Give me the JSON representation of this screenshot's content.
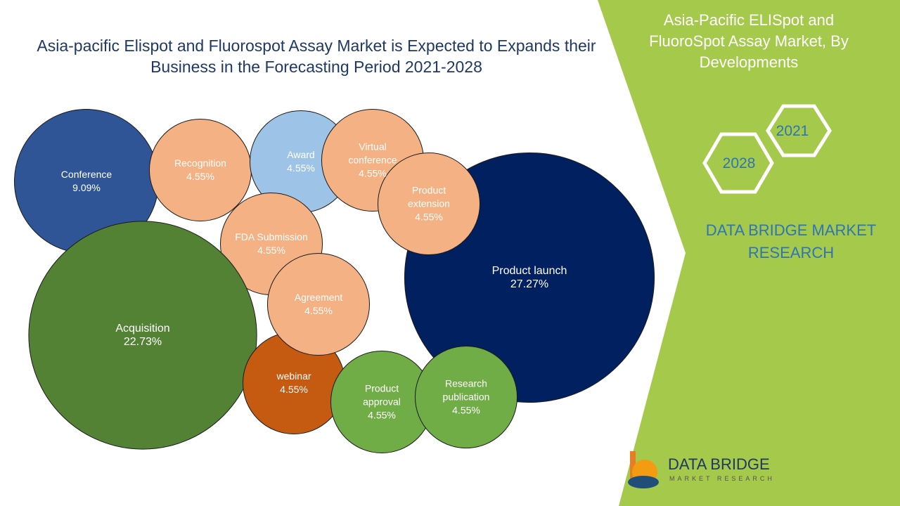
{
  "chart_data": {
    "type": "bubble",
    "title": "Asia-pacific Elispot and Fluorospot Assay Market is Expected to Expands their Business in the Forecasting Period 2021-2028",
    "categories": [
      "Conference",
      "Recognition",
      "Award",
      "Virtual conference",
      "FDA Submission",
      "Product launch",
      "Product extension",
      "Acquisition",
      "webinar",
      "Agreement",
      "Product approval",
      "Research publication"
    ],
    "values": [
      9.09,
      4.55,
      4.55,
      4.55,
      4.55,
      27.27,
      4.55,
      22.73,
      4.55,
      4.55,
      4.55,
      4.55
    ],
    "value_labels": [
      "9.09%",
      "4.55%",
      "4.55%",
      "4.55%",
      "4.55%",
      "27.27%",
      "4.55%",
      "22.73%",
      "4.55%",
      "4.55%",
      "4.55%",
      "4.55%"
    ],
    "colors": [
      "#2f5597",
      "#f4b183",
      "#9dc3e6",
      "#f4b183",
      "#f4b183",
      "#002060",
      "#f4b183",
      "#548235",
      "#c55a11",
      "#f4b183",
      "#70ad47",
      "#70ad47"
    ]
  },
  "sidebar": {
    "title": "Asia-Pacific ELISpot and FluoroSpot Assay Market, By Developments",
    "year_start": "2021",
    "year_end": "2028",
    "brand": "DATA BRIDGE MARKET RESEARCH"
  },
  "logo": {
    "name": "DATA BRIDGE",
    "tagline": "MARKET RESEARCH"
  }
}
